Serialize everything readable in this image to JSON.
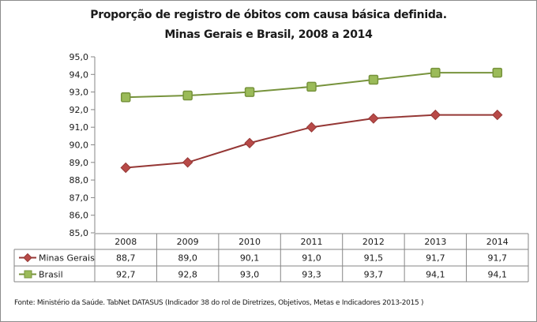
{
  "chart_data": {
    "type": "line",
    "title": "Proporção de registro de óbitos com causa básica definida.",
    "subtitle": "Minas Gerais e Brasil, 2008 a 2014",
    "xlabel": "",
    "ylabel": "",
    "categories": [
      "2008",
      "2009",
      "2010",
      "2011",
      "2012",
      "2013",
      "2014"
    ],
    "ylim": [
      85.0,
      95.0
    ],
    "yticks": [
      "85,0",
      "86,0",
      "87,0",
      "88,0",
      "89,0",
      "90,0",
      "91,0",
      "92,0",
      "93,0",
      "94,0",
      "95,0"
    ],
    "ytick_values": [
      85,
      86,
      87,
      88,
      89,
      90,
      91,
      92,
      93,
      94,
      95
    ],
    "grid": false,
    "legend_placement": "data-table-left",
    "series": [
      {
        "name": "Minas Gerais",
        "values": [
          88.7,
          89.0,
          90.1,
          91.0,
          91.5,
          91.7,
          91.7
        ],
        "labels": [
          "88,7",
          "89,0",
          "90,1",
          "91,0",
          "91,5",
          "91,7",
          "91,7"
        ],
        "color": "#953735",
        "marker": "diamond"
      },
      {
        "name": "Brasil",
        "values": [
          92.7,
          92.8,
          93.0,
          93.3,
          93.7,
          94.1,
          94.1
        ],
        "labels": [
          "92,7",
          "92,8",
          "93,0",
          "93,3",
          "93,7",
          "94,1",
          "94,1"
        ],
        "color": "#77933c",
        "marker": "square"
      }
    ],
    "source": "Fonte: Ministério da Saúde. TabNet DATASUS (Indicador 38 do rol de Diretrizes, Objetivos, Metas e Indicadores 2013-2015 )"
  }
}
